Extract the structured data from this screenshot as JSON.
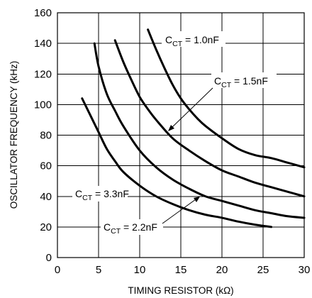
{
  "chart_data": {
    "type": "line",
    "xlabel": "TIMING RESISTOR (kΩ)",
    "ylabel": "OSCILLATOR FREQUENCY (kHz)",
    "xlim": [
      0,
      30
    ],
    "ylim": [
      0,
      160
    ],
    "xticks": [
      0,
      5,
      10,
      15,
      20,
      25,
      30
    ],
    "yticks": [
      0,
      20,
      40,
      60,
      80,
      100,
      120,
      140,
      160
    ],
    "grid": true,
    "series": [
      {
        "name": "CCT = 1.0nF",
        "label_main": "C",
        "label_sub": "CT",
        "label_rest": " = 1.0nF",
        "x": [
          11,
          12,
          13,
          14,
          15,
          16,
          17,
          18,
          20,
          22,
          24,
          26,
          28,
          30
        ],
        "y": [
          149,
          136,
          124,
          113,
          104,
          97,
          91,
          86,
          78,
          71,
          67,
          65,
          62,
          59
        ]
      },
      {
        "name": "CCT = 1.5nF",
        "label_main": "C",
        "label_sub": "CT",
        "label_rest": " = 1.5nF",
        "x": [
          7,
          8,
          9,
          10,
          11,
          12,
          14,
          16,
          18,
          20,
          22,
          24,
          26,
          28,
          30
        ],
        "y": [
          142,
          128,
          116,
          105,
          97,
          90,
          78,
          70,
          63,
          57,
          53,
          49,
          46,
          43,
          40
        ]
      },
      {
        "name": "CCT = 3.3nF",
        "label_main": "C",
        "label_sub": "CT",
        "label_rest": " = 3.3nF",
        "x": [
          3,
          4,
          5,
          6,
          7,
          8,
          10,
          12,
          14,
          16,
          18,
          20,
          22,
          24,
          26
        ],
        "y": [
          104,
          93,
          82,
          71,
          63,
          56,
          47,
          40,
          35,
          31,
          28,
          26,
          23.5,
          21.5,
          20
        ]
      },
      {
        "name": "CCT = 2.2nF",
        "label_main": "C",
        "label_sub": "CT",
        "label_rest": " = 2.2nF",
        "x": [
          4.5,
          5,
          6,
          7,
          8,
          10,
          12,
          14,
          16,
          18,
          20,
          22,
          24,
          26,
          28,
          30
        ],
        "y": [
          140,
          125,
          107,
          96,
          86,
          70,
          59,
          51,
          45,
          40,
          37,
          34,
          31,
          29,
          27,
          26
        ]
      }
    ]
  }
}
